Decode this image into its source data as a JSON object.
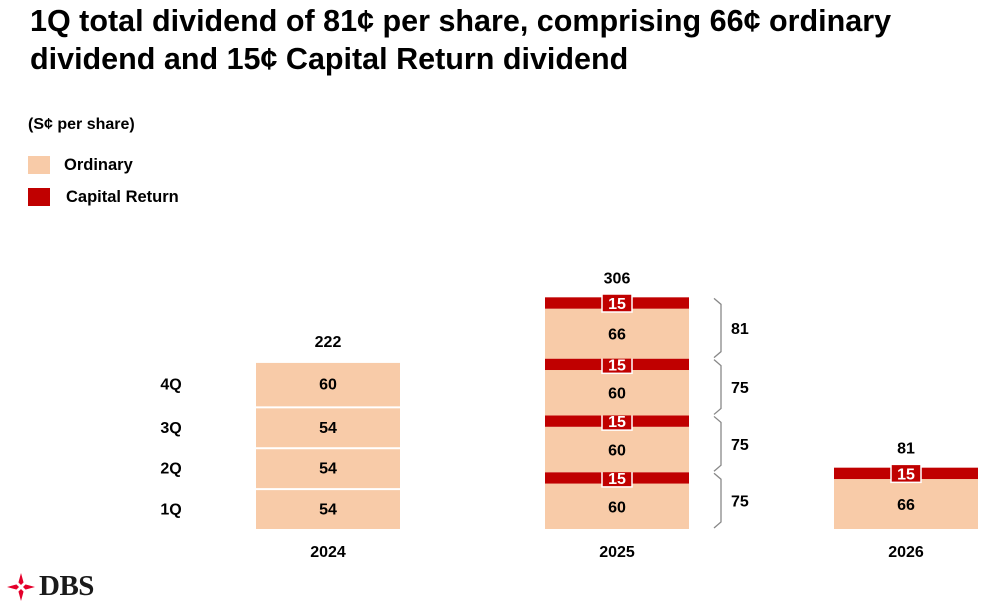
{
  "title": "1Q total dividend of 81¢ per share, comprising 66¢ ordinary dividend and 15¢ Capital Return dividend",
  "unit_label": "(S¢ per share)",
  "legend": [
    {
      "label": "Ordinary",
      "color": "#F8CBA8"
    },
    {
      "label": "Capital Return",
      "color": "#C00000"
    }
  ],
  "logo": {
    "text": "DBS",
    "icon": "dbs-star-icon",
    "color": "#E4002B"
  },
  "chart_data": {
    "type": "bar",
    "stacked": true,
    "title": "",
    "xlabel": "",
    "ylabel": "",
    "categories": [
      "2024",
      "2025",
      "2026"
    ],
    "quarter_labels": [
      "1Q",
      "2Q",
      "3Q",
      "4Q"
    ],
    "totals": [
      "222",
      "306",
      "81"
    ],
    "stacks": [
      {
        "category": "2024",
        "segments": [
          {
            "series": "Ordinary",
            "value": 54
          },
          {
            "series": "Ordinary",
            "value": 54
          },
          {
            "series": "Ordinary",
            "value": 54
          },
          {
            "series": "Ordinary",
            "value": 60
          }
        ]
      },
      {
        "category": "2025",
        "segments": [
          {
            "series": "Ordinary",
            "value": 60
          },
          {
            "series": "Capital Return",
            "value": 15
          },
          {
            "series": "Ordinary",
            "value": 60
          },
          {
            "series": "Capital Return",
            "value": 15
          },
          {
            "series": "Ordinary",
            "value": 60
          },
          {
            "series": "Capital Return",
            "value": 15
          },
          {
            "series": "Ordinary",
            "value": 66
          },
          {
            "series": "Capital Return",
            "value": 15
          }
        ],
        "quarter_totals": [
          "75",
          "75",
          "75",
          "81"
        ]
      },
      {
        "category": "2026",
        "segments": [
          {
            "series": "Ordinary",
            "value": 66
          },
          {
            "series": "Capital Return",
            "value": 15
          }
        ]
      }
    ],
    "colors": {
      "Ordinary": "#F8CBA8",
      "Capital Return": "#C00000"
    },
    "legend_position": "top-left",
    "grid": false
  }
}
